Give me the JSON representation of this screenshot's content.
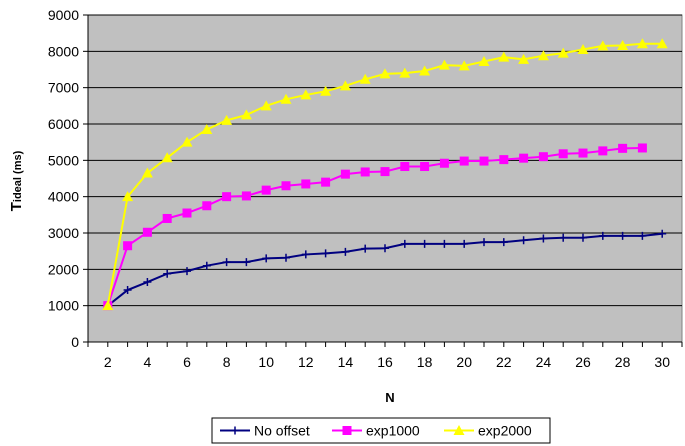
{
  "chart_data": {
    "type": "line",
    "xlabel": "N",
    "ylabel_main": "T",
    "ylabel_sub": "ideal (ms)",
    "x_ticks": [
      2,
      4,
      6,
      8,
      10,
      12,
      14,
      16,
      18,
      20,
      22,
      24,
      26,
      28,
      30
    ],
    "y_ticks": [
      0,
      1000,
      2000,
      3000,
      4000,
      5000,
      6000,
      7000,
      8000,
      9000
    ],
    "xlim": [
      1,
      31
    ],
    "ylim": [
      0,
      9000
    ],
    "grid": true,
    "legend_position": "bottom",
    "colors": {
      "plot_bg": "#c0c0c0",
      "grid": "#000000",
      "axis": "#000000"
    },
    "series": [
      {
        "name": "No offset",
        "color": "#000080",
        "marker": "plus",
        "x": [
          2,
          3,
          4,
          5,
          6,
          7,
          8,
          9,
          10,
          11,
          12,
          13,
          14,
          15,
          16,
          17,
          18,
          19,
          20,
          21,
          22,
          23,
          24,
          25,
          26,
          27,
          28,
          29,
          30
        ],
        "values": [
          1000,
          1430,
          1650,
          1880,
          1950,
          2100,
          2200,
          2200,
          2300,
          2320,
          2410,
          2440,
          2480,
          2570,
          2580,
          2700,
          2700,
          2700,
          2700,
          2750,
          2750,
          2800,
          2850,
          2870,
          2870,
          2920,
          2920,
          2920,
          2980
        ]
      },
      {
        "name": "exp1000",
        "color": "#ff00ff",
        "marker": "square",
        "x": [
          2,
          3,
          4,
          5,
          6,
          7,
          8,
          9,
          10,
          11,
          12,
          13,
          14,
          15,
          16,
          17,
          18,
          19,
          20,
          21,
          22,
          23,
          24,
          25,
          26,
          27,
          28,
          29
        ],
        "values": [
          1000,
          2650,
          3020,
          3400,
          3550,
          3750,
          4000,
          4020,
          4180,
          4300,
          4350,
          4400,
          4620,
          4680,
          4690,
          4830,
          4830,
          4920,
          4980,
          4980,
          5020,
          5060,
          5100,
          5180,
          5200,
          5260,
          5330,
          5340
        ]
      },
      {
        "name": "exp2000",
        "color": "#ffff00",
        "marker": "triangle",
        "x": [
          2,
          3,
          4,
          5,
          6,
          7,
          8,
          9,
          10,
          11,
          12,
          13,
          14,
          15,
          16,
          17,
          18,
          19,
          20,
          21,
          22,
          23,
          24,
          25,
          26,
          27,
          28,
          29,
          30
        ],
        "values": [
          1000,
          4000,
          4650,
          5070,
          5500,
          5850,
          6100,
          6250,
          6500,
          6680,
          6800,
          6900,
          7050,
          7230,
          7380,
          7400,
          7460,
          7620,
          7600,
          7720,
          7840,
          7780,
          7880,
          7950,
          8050,
          8150,
          8160,
          8210,
          8210
        ]
      }
    ]
  }
}
